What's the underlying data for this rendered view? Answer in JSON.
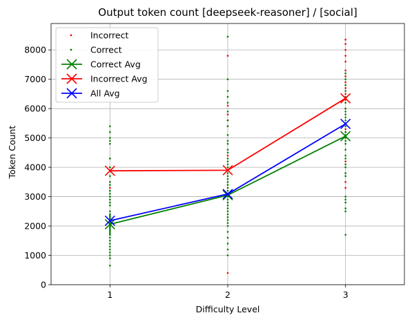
{
  "chart_data": {
    "type": "scatter",
    "title": "Output token count [deepseek-reasoner] / [social]",
    "xlabel": "Difficulty Level",
    "ylabel": "Token Count",
    "xlim": [
      0.5,
      3.5
    ],
    "ylim": [
      0,
      8900
    ],
    "x_ticks": [
      1,
      2,
      3
    ],
    "y_ticks": [
      0,
      1000,
      2000,
      3000,
      4000,
      5000,
      6000,
      7000,
      8000
    ],
    "grid": true,
    "legend_position": "top-left",
    "points": {
      "incorrect": {
        "1": [
          3300,
          3900,
          4300
        ],
        "2": [
          400,
          4400,
          5400,
          5600,
          5800,
          6100,
          7800
        ],
        "3": [
          3300,
          3500,
          4200,
          5200,
          5300,
          5500,
          6000,
          6300,
          6500,
          6700,
          6900,
          7100,
          7300,
          7600,
          7800,
          8000,
          8200,
          8350
        ]
      },
      "correct": {
        "1": [
          650,
          900,
          1000,
          1100,
          1200,
          1300,
          1400,
          1500,
          1600,
          1700,
          1750,
          1800,
          1850,
          1900,
          1950,
          2000,
          2050,
          2100,
          2150,
          2200,
          2250,
          2300,
          2350,
          2400,
          2500,
          2700,
          2800,
          2900,
          3000,
          3100,
          3200,
          3400,
          3500,
          3700,
          4000,
          4300,
          4800,
          4900,
          5000,
          5200,
          5400
        ],
        "2": [
          1000,
          1200,
          1400,
          1600,
          1800,
          2000,
          2100,
          2200,
          2300,
          2400,
          2500,
          2600,
          2700,
          2800,
          2900,
          3000,
          3100,
          3200,
          3300,
          3400,
          3500,
          3600,
          3700,
          3800,
          3900,
          4000,
          4100,
          4200,
          4300,
          4500,
          4600,
          4800,
          4900,
          5100,
          5400,
          5600,
          5900,
          6200,
          6400,
          6600,
          7000,
          8450
        ],
        "3": [
          1700,
          2500,
          2600,
          2800,
          2900,
          3000,
          3700,
          3800,
          4000,
          4100,
          4300,
          4400,
          4600,
          4800,
          4900,
          5000,
          5100,
          5200,
          5400,
          5500,
          5600,
          5700,
          5800,
          5900,
          6000,
          6200,
          6400,
          6600,
          6800,
          7000,
          7200
        ]
      }
    },
    "series": [
      {
        "name": "Correct Avg",
        "x": [
          1,
          2,
          3
        ],
        "y": [
          2060,
          3050,
          5060
        ],
        "color": "#008000"
      },
      {
        "name": "Incorrect Avg",
        "x": [
          1,
          2,
          3
        ],
        "y": [
          3880,
          3900,
          6350
        ],
        "color": "#ff0000"
      },
      {
        "name": "All Avg",
        "x": [
          1,
          2,
          3
        ],
        "y": [
          2180,
          3090,
          5480
        ],
        "color": "#0000ff"
      }
    ],
    "legend": [
      {
        "label": "Incorrect",
        "kind": "dot",
        "color": "#ff0000"
      },
      {
        "label": "Correct",
        "kind": "dot",
        "color": "#008000"
      },
      {
        "label": "Correct Avg",
        "kind": "line",
        "color": "#008000"
      },
      {
        "label": "Incorrect Avg",
        "kind": "line",
        "color": "#ff0000"
      },
      {
        "label": "All Avg",
        "kind": "line",
        "color": "#0000ff"
      }
    ]
  }
}
